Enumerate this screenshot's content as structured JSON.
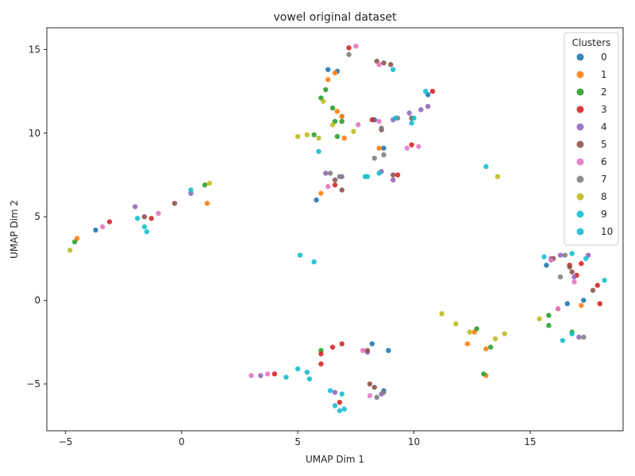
{
  "chart_data": {
    "type": "scatter",
    "title": "vowel original dataset",
    "xlabel": "UMAP Dim 1",
    "ylabel": "UMAP Dim 2",
    "xlim": [
      -5.8,
      19.0
    ],
    "ylim": [
      -7.8,
      16.3
    ],
    "xticks": [
      -5,
      0,
      5,
      10,
      15
    ],
    "yticks": [
      -5,
      0,
      5,
      10,
      15
    ],
    "tick_labels_x": [
      "−5",
      "0",
      "5",
      "10",
      "15"
    ],
    "tick_labels_y": [
      "−5",
      "0",
      "5",
      "10",
      "15"
    ],
    "grid": false,
    "legend": {
      "title": "Clusters",
      "placement": "top-right"
    },
    "series": [
      {
        "name": "0",
        "color": "#1f77b4",
        "points": [
          [
            -3.7,
            4.2
          ],
          [
            5.8,
            6.0
          ],
          [
            6.3,
            13.8
          ],
          [
            6.7,
            13.7
          ],
          [
            6.9,
            11.0
          ],
          [
            8.3,
            10.8
          ],
          [
            8.7,
            9.1
          ],
          [
            10.6,
            12.3
          ],
          [
            15.7,
            2.1
          ],
          [
            16.6,
            -0.2
          ],
          [
            17.3,
            0.0
          ],
          [
            8.2,
            -2.6
          ],
          [
            8.9,
            -3.0
          ],
          [
            8.7,
            -5.4
          ]
        ]
      },
      {
        "name": "1",
        "color": "#ff7f0e",
        "points": [
          [
            -4.5,
            3.7
          ],
          [
            1.1,
            5.8
          ],
          [
            6.0,
            6.4
          ],
          [
            6.3,
            13.2
          ],
          [
            6.6,
            13.6
          ],
          [
            6.7,
            11.3
          ],
          [
            7.0,
            9.7
          ],
          [
            6.9,
            11.0
          ],
          [
            8.5,
            9.1
          ],
          [
            12.3,
            -2.6
          ],
          [
            12.6,
            -1.9
          ],
          [
            13.1,
            -2.9
          ],
          [
            13.1,
            -4.5
          ],
          [
            16.2,
            -0.5
          ],
          [
            17.2,
            -0.3
          ]
        ]
      },
      {
        "name": "2",
        "color": "#2ca02c",
        "points": [
          [
            -4.6,
            3.5
          ],
          [
            1.0,
            6.9
          ],
          [
            5.7,
            9.9
          ],
          [
            6.0,
            12.1
          ],
          [
            6.2,
            12.6
          ],
          [
            6.5,
            11.5
          ],
          [
            6.6,
            10.7
          ],
          [
            6.9,
            10.7
          ],
          [
            6.7,
            9.8
          ],
          [
            6.0,
            -3.0
          ],
          [
            12.7,
            -1.7
          ],
          [
            13.3,
            -2.8
          ],
          [
            15.8,
            -0.9
          ],
          [
            15.8,
            -1.5
          ],
          [
            16.8,
            -1.9
          ],
          [
            13.0,
            -4.4
          ]
        ]
      },
      {
        "name": "3",
        "color": "#d62728",
        "points": [
          [
            -3.1,
            4.7
          ],
          [
            -1.3,
            4.9
          ],
          [
            6.6,
            6.9
          ],
          [
            7.2,
            15.1
          ],
          [
            8.2,
            10.8
          ],
          [
            9.3,
            7.5
          ],
          [
            9.9,
            9.3
          ],
          [
            10.8,
            12.5
          ],
          [
            17.2,
            2.2
          ],
          [
            17.0,
            1.5
          ],
          [
            17.9,
            0.9
          ],
          [
            18.0,
            -0.2
          ],
          [
            16.7,
            2.1
          ],
          [
            6.0,
            -3.2
          ],
          [
            6.5,
            -2.8
          ],
          [
            6.9,
            -2.6
          ],
          [
            4.0,
            -4.4
          ],
          [
            6.0,
            -3.8
          ],
          [
            6.8,
            -6.1
          ]
        ]
      },
      {
        "name": "4",
        "color": "#9467bd",
        "points": [
          [
            -2.0,
            5.6
          ],
          [
            0.4,
            6.4
          ],
          [
            6.2,
            7.6
          ],
          [
            6.9,
            7.4
          ],
          [
            8.6,
            7.7
          ],
          [
            9.1,
            7.2
          ],
          [
            9.1,
            10.8
          ],
          [
            9.8,
            11.2
          ],
          [
            10.6,
            11.6
          ],
          [
            10.3,
            11.4
          ],
          [
            15.9,
            2.5
          ],
          [
            16.3,
            2.7
          ],
          [
            17.5,
            2.7
          ],
          [
            16.9,
            1.4
          ],
          [
            17.1,
            -2.2
          ],
          [
            3.4,
            -4.5
          ],
          [
            8.0,
            -3.1
          ],
          [
            8.6,
            -5.6
          ],
          [
            6.6,
            -5.5
          ]
        ]
      },
      {
        "name": "5",
        "color": "#8c564b",
        "points": [
          [
            -0.3,
            5.8
          ],
          [
            -1.6,
            5.0
          ],
          [
            6.6,
            7.2
          ],
          [
            6.9,
            6.6
          ],
          [
            8.4,
            14.3
          ],
          [
            8.7,
            14.2
          ],
          [
            9.0,
            14.1
          ],
          [
            8.6,
            10.2
          ],
          [
            9.9,
            10.9
          ],
          [
            9.1,
            7.5
          ],
          [
            16.0,
            2.5
          ],
          [
            16.7,
            2.0
          ],
          [
            16.8,
            1.7
          ],
          [
            17.7,
            0.6
          ],
          [
            8.0,
            -3.0
          ],
          [
            8.1,
            -5.0
          ],
          [
            8.3,
            -5.2
          ]
        ]
      },
      {
        "name": "6",
        "color": "#e377c2",
        "points": [
          [
            -3.4,
            4.4
          ],
          [
            -1.0,
            5.2
          ],
          [
            6.3,
            6.8
          ],
          [
            7.5,
            15.2
          ],
          [
            8.5,
            14.1
          ],
          [
            7.6,
            10.5
          ],
          [
            8.5,
            10.7
          ],
          [
            9.7,
            9.1
          ],
          [
            10.2,
            9.2
          ],
          [
            15.9,
            2.4
          ],
          [
            16.9,
            1.1
          ],
          [
            16.2,
            -0.5
          ],
          [
            3.0,
            -4.5
          ],
          [
            3.7,
            -4.4
          ],
          [
            7.8,
            -3.0
          ],
          [
            8.1,
            -5.7
          ]
        ]
      },
      {
        "name": "7",
        "color": "#7f7f7f",
        "points": [
          [
            7.2,
            14.7
          ],
          [
            8.7,
            8.7
          ],
          [
            8.3,
            8.5
          ],
          [
            6.8,
            7.4
          ],
          [
            6.4,
            7.6
          ],
          [
            9.3,
            10.9
          ],
          [
            8.6,
            10.3
          ],
          [
            16.3,
            1.4
          ],
          [
            16.5,
            2.7
          ],
          [
            17.3,
            -2.2
          ],
          [
            8.7,
            -5.5
          ],
          [
            8.4,
            -5.8
          ]
        ]
      },
      {
        "name": "8",
        "color": "#bcbd22",
        "points": [
          [
            -4.8,
            3.0
          ],
          [
            1.2,
            7.0
          ],
          [
            5.0,
            9.8
          ],
          [
            5.4,
            9.9
          ],
          [
            5.9,
            9.7
          ],
          [
            6.1,
            11.9
          ],
          [
            7.4,
            10.1
          ],
          [
            6.5,
            10.5
          ],
          [
            11.2,
            -0.8
          ],
          [
            11.8,
            -1.4
          ],
          [
            13.6,
            7.4
          ],
          [
            13.5,
            -2.3
          ],
          [
            13.9,
            -2.0
          ],
          [
            15.4,
            -1.1
          ],
          [
            12.4,
            -1.9
          ]
        ]
      },
      {
        "name": "9",
        "color": "#17becf",
        "points": [
          [
            -1.6,
            4.4
          ],
          [
            -1.5,
            4.1
          ],
          [
            5.9,
            8.9
          ],
          [
            8.0,
            7.4
          ],
          [
            9.1,
            13.8
          ],
          [
            9.9,
            10.6
          ],
          [
            10.5,
            12.5
          ],
          [
            15.6,
            2.6
          ],
          [
            17.4,
            2.5
          ],
          [
            16.4,
            -2.4
          ],
          [
            5.0,
            -4.1
          ],
          [
            5.5,
            -4.7
          ],
          [
            6.6,
            -6.3
          ],
          [
            7.0,
            -6.5
          ],
          [
            4.5,
            -4.6
          ]
        ]
      },
      {
        "name": "10",
        "color": "#17becf",
        "points": [
          [
            -1.9,
            4.9
          ],
          [
            0.4,
            6.6
          ],
          [
            5.1,
            2.7
          ],
          [
            5.7,
            2.3
          ],
          [
            7.9,
            7.4
          ],
          [
            8.5,
            7.6
          ],
          [
            9.2,
            10.9
          ],
          [
            10.0,
            10.9
          ],
          [
            13.1,
            8.0
          ],
          [
            16.8,
            -2.0
          ],
          [
            18.2,
            1.2
          ],
          [
            16.8,
            2.8
          ],
          [
            5.4,
            -4.3
          ],
          [
            6.4,
            -5.4
          ],
          [
            6.9,
            -5.6
          ],
          [
            6.8,
            -6.6
          ]
        ]
      }
    ]
  }
}
